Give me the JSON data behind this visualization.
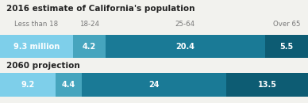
{
  "title1": "2016 estimate of California's population",
  "title2": "2060 projection",
  "categories": [
    "Less than 18",
    "18-24",
    "25-64",
    "Over 65"
  ],
  "row1_values": [
    9.3,
    4.2,
    20.4,
    5.5
  ],
  "row1_labels": [
    "9.3 million",
    "4.2",
    "20.4",
    "5.5"
  ],
  "row2_values": [
    9.2,
    4.4,
    24.0,
    13.5
  ],
  "row2_labels": [
    "9.2",
    "4.4",
    "24",
    "13.5"
  ],
  "colors": [
    "#7ecfea",
    "#46a5be",
    "#1a7a96",
    "#0d5c73"
  ],
  "bg_color": "#f2f2ee",
  "title_fontsize": 7.5,
  "cat_fontsize": 6.2,
  "value_fontsize": 7.0,
  "text_color": "#ffffff",
  "cat_color": "#777777",
  "title_color": "#222222"
}
